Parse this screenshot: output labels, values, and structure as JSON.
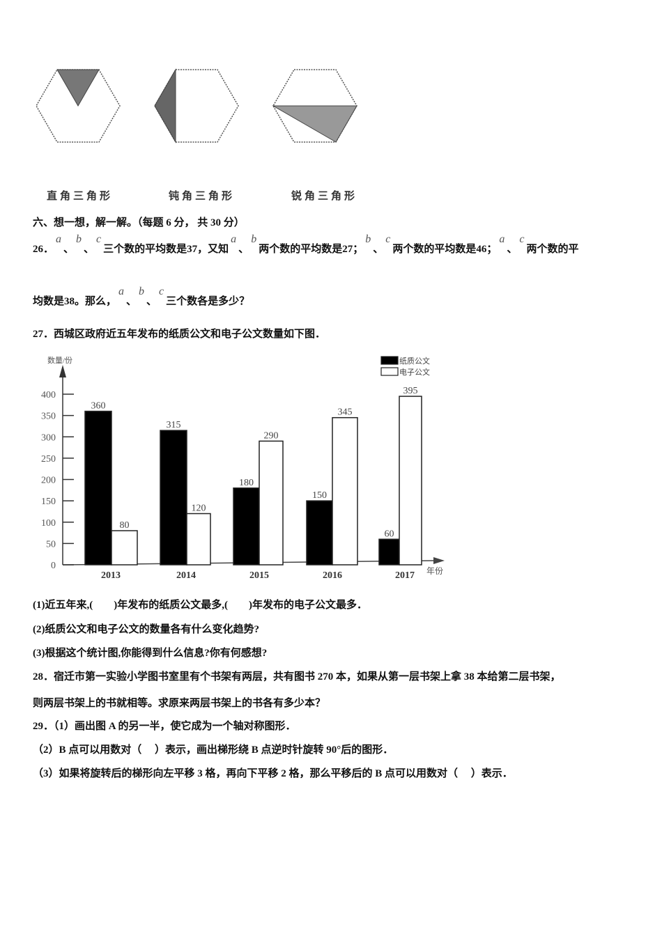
{
  "figures": {
    "labels": [
      "直角三角形",
      "钝角三角形",
      "锐角三角形"
    ]
  },
  "section_title": "六、想一想，解一解。（每题 6 分， 共 30 分）",
  "q26": {
    "line1": [
      {
        "t": "26．"
      },
      {
        "v": "a"
      },
      {
        "t": "、"
      },
      {
        "v": "b"
      },
      {
        "t": "、"
      },
      {
        "v": "c"
      },
      {
        "t": "三个数的平均数是37，又知"
      },
      {
        "v": "a"
      },
      {
        "t": "、"
      },
      {
        "v": "b"
      },
      {
        "t": "两个数的平均数是27；"
      },
      {
        "v": "b"
      },
      {
        "t": "、"
      },
      {
        "v": "c"
      },
      {
        "t": "两个数的平均数是46；"
      },
      {
        "v": "a"
      },
      {
        "t": "、"
      },
      {
        "v": "c"
      },
      {
        "t": "两个数的平"
      }
    ],
    "line2": [
      {
        "t": "均数是38。那么，"
      },
      {
        "v": "a"
      },
      {
        "t": "、"
      },
      {
        "v": "b"
      },
      {
        "t": "、"
      },
      {
        "v": "c"
      },
      {
        "t": "三个数各是多少？"
      }
    ]
  },
  "q27": {
    "title": "27．西城区政府近五年发布的纸质公文和电子公文数量如下图．",
    "sub1": "(1)近五年来,(　　)年发布的纸质公文最多,(　　)年发布的电子公文最多．",
    "sub2": "(2)纸质公文和电子公文的数量各有什么变化趋势?",
    "sub3": "(3)根据这个统计图,你能得到什么信息?你有何感想?"
  },
  "q28": {
    "line1": "28．宿迁市第一实验小学图书室里有个书架有两层，共有图书 270 本，如果从第一层书架上拿 38 本给第二层书架，",
    "line2": "则两层书架上的书就相等。求原来两层书架上的书各有多少本？"
  },
  "q29": {
    "line1": "29．（1）画出图 A 的另一半，使它成为一个轴对称图形．",
    "line2": "（2）B 点可以用数对（　 ）表示，画出梯形绕 B 点逆时针旋转 90°后的图形．",
    "line3": "（3）如果将旋转后的梯形向左平移 3 格，再向下平移 2 格，那么平移后的 B 点可以用数对（　 ）表示．"
  },
  "chart_data": {
    "type": "bar",
    "ylabel": "数量/份",
    "xlabel": "年份",
    "categories": [
      "2013",
      "2014",
      "2015",
      "2016",
      "2017"
    ],
    "series": [
      {
        "name": "纸质公文",
        "values": [
          360,
          315,
          180,
          150,
          60
        ],
        "color": "#000000"
      },
      {
        "name": "电子公文",
        "values": [
          80,
          120,
          290,
          345,
          395
        ],
        "color": "#ffffff"
      }
    ],
    "yticks": [
      0,
      50,
      100,
      150,
      200,
      250,
      300,
      350,
      400
    ],
    "ylim": [
      0,
      400
    ],
    "legend": "top-right",
    "grid": false
  }
}
